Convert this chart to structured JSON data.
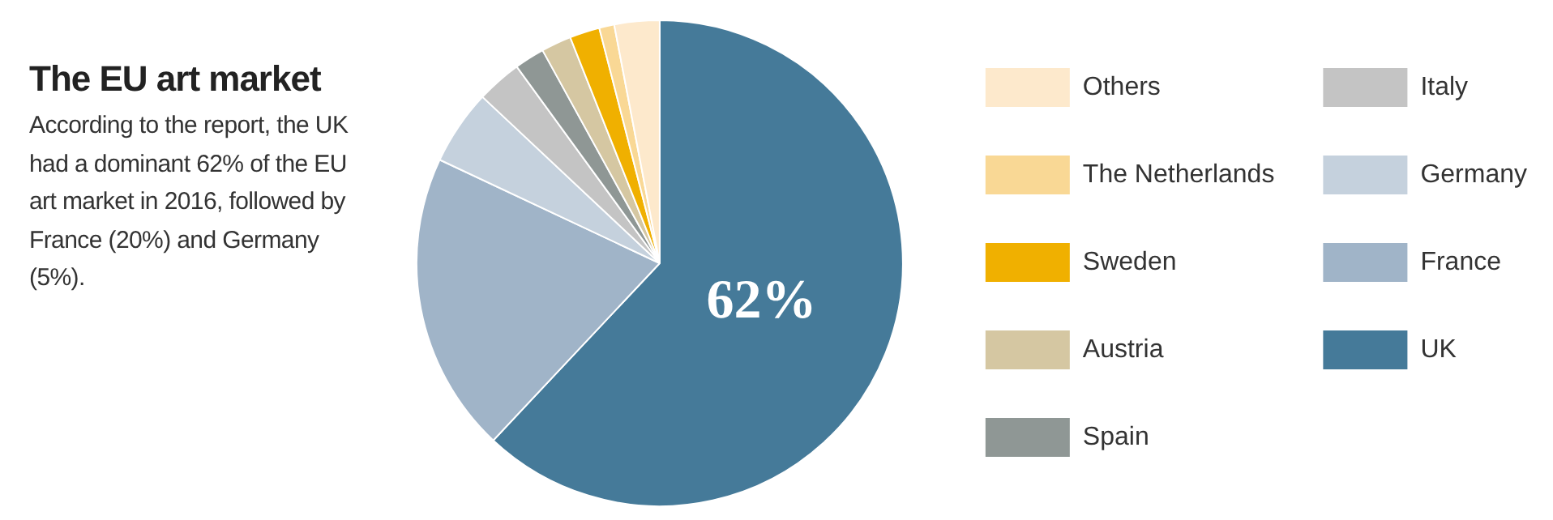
{
  "chart_data": {
    "type": "pie",
    "title": "The EU art market",
    "annotations": [
      "According to the report, the UK had a dominant 62% of the EU art market in 2016, followed by France (20%) and Germany (5%)."
    ],
    "categories": [
      "UK",
      "France",
      "Germany",
      "Italy",
      "Spain",
      "Austria",
      "Sweden",
      "The Netherlands",
      "Others"
    ],
    "values": [
      62,
      20,
      5,
      3,
      2,
      2,
      2,
      1,
      3
    ],
    "colors": [
      "#457a99",
      "#a0b4c8",
      "#c5d1dd",
      "#c4c4c4",
      "#8f9795",
      "#d5c7a2",
      "#f0b000",
      "#f9d895",
      "#fde9cc"
    ],
    "value_labels": [
      "62%",
      null,
      null,
      null,
      null,
      null,
      null,
      null,
      null
    ],
    "legend": "right"
  }
}
